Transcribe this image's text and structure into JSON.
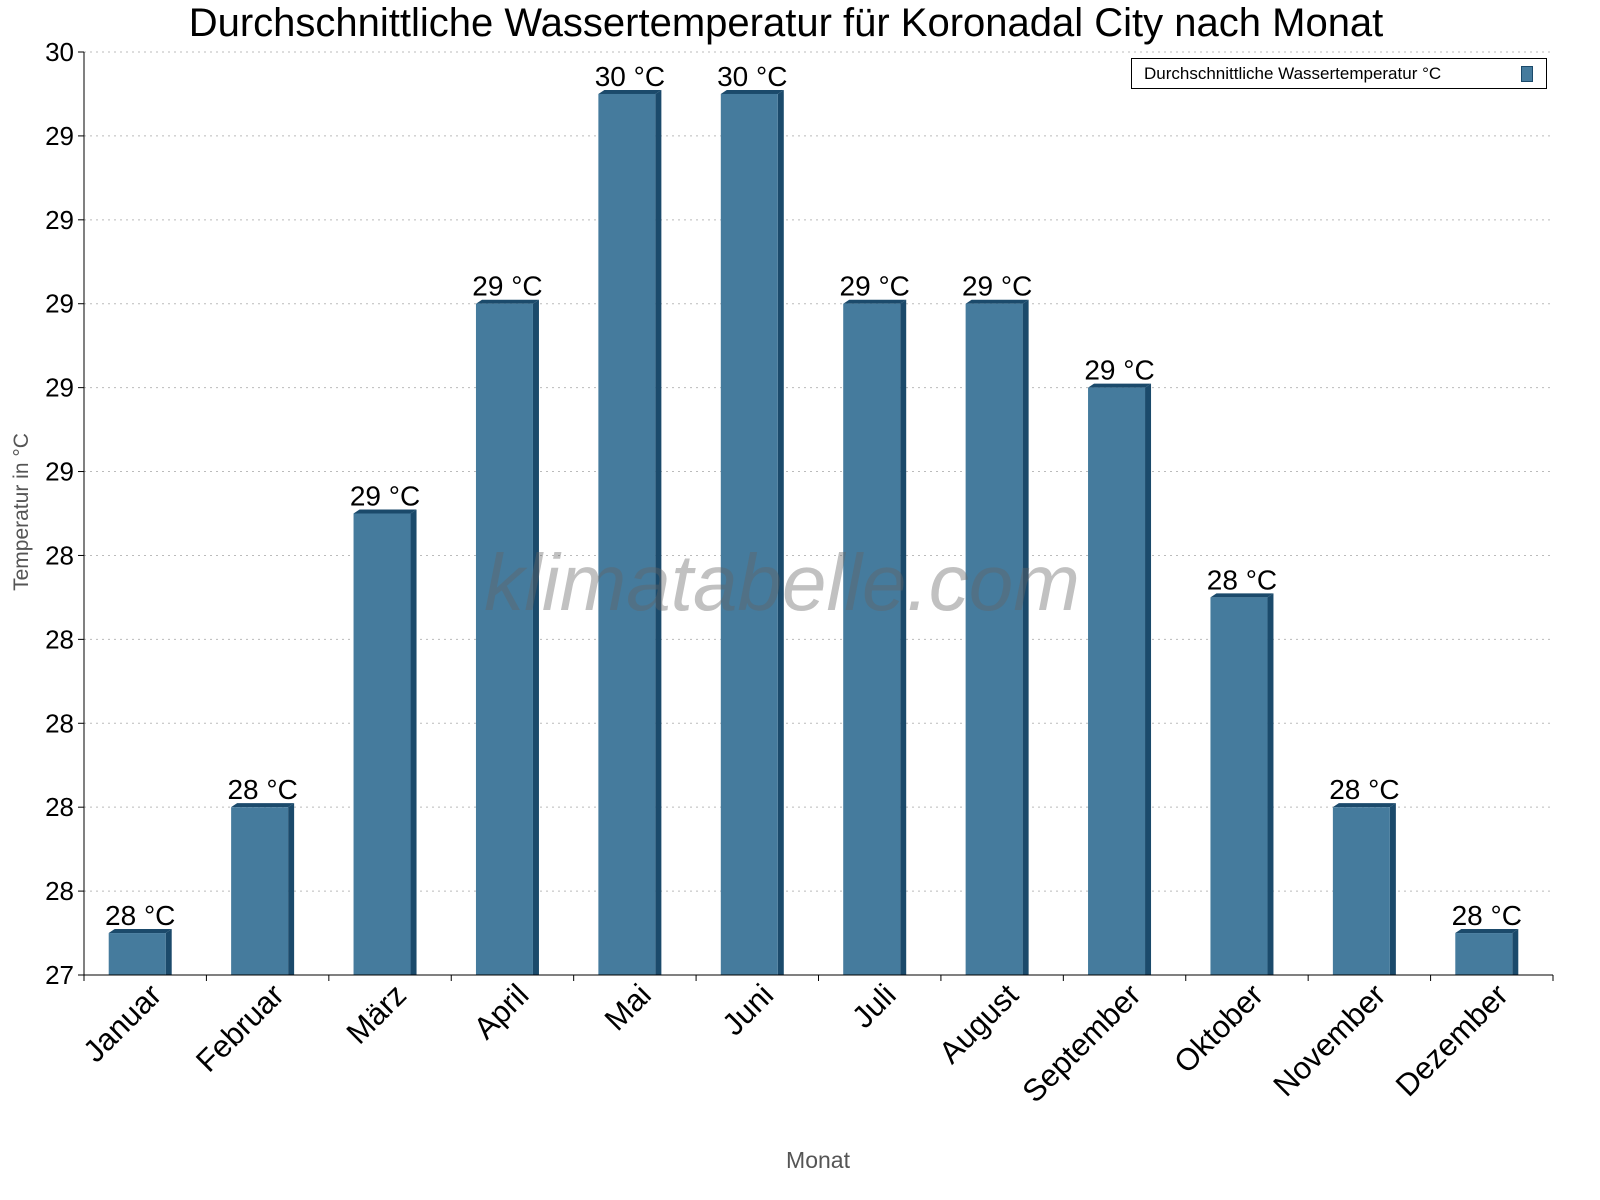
{
  "chart_data": {
    "type": "bar",
    "title": "Durchschnittliche Wassertemperatur für Koronadal City nach Monat",
    "xlabel": "Monat",
    "ylabel": "Temperatur in °C",
    "categories": [
      "Januar",
      "Februar",
      "März",
      "April",
      "Mai",
      "Juni",
      "Juli",
      "August",
      "September",
      "Oktober",
      "November",
      "Dezember"
    ],
    "series": [
      {
        "name": "Durchschnittliche Wassertemperatur °C",
        "values": [
          27.5,
          27.8,
          28.5,
          29.0,
          29.5,
          29.5,
          29.0,
          29.0,
          28.8,
          28.3,
          27.8,
          27.5
        ],
        "data_labels": [
          "28 °C",
          "28 °C",
          "29 °C",
          "29 °C",
          "30 °C",
          "30 °C",
          "29 °C",
          "29 °C",
          "29 °C",
          "28 °C",
          "28 °C",
          "28 °C"
        ]
      }
    ],
    "ylim": [
      27.4,
      29.6
    ],
    "yticks": [
      27.4,
      27.6,
      27.8,
      28.0,
      28.2,
      28.4,
      28.6,
      28.8,
      29.0,
      29.2,
      29.4,
      29.6
    ],
    "ytick_labels": [
      "27",
      "28",
      "28",
      "28",
      "28",
      "28",
      "29",
      "29",
      "29",
      "29",
      "29",
      "30"
    ],
    "grid": true,
    "legend_position": "top-right",
    "colors": {
      "bar": "#457b9d",
      "bar_side": "#1b4a6b"
    },
    "watermark": "klimatabelle.com"
  }
}
